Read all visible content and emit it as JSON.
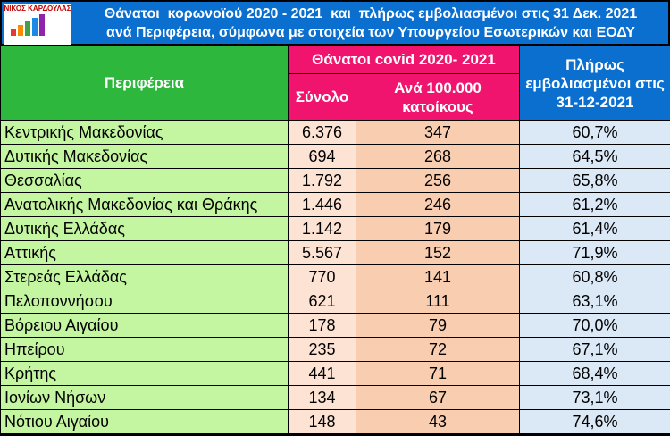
{
  "header": {
    "logo": "ΝΙΚΟΣ ΚΑΡΔΟΥΛΑΣ",
    "title_line1": "Θάνατοι  κορωνοϊού 2020 - 2021  και  πλήρως εμβολιασμένοι στις 31 Δεκ. 2021",
    "title_line2": "ανά Περιφέρεια, σύμφωνα με στοιχεία των Υπουργείου Εσωτερικών και ΕΟΔΥ"
  },
  "table": {
    "columns": {
      "region": "Περιφέρεια",
      "deaths_group": "Θάνατοι covid 2020- 2021",
      "total": "Σύνολο",
      "per100k": "Ανά 100.000 κατοίκους",
      "vaccinated": "Πλήρως εμβολιασμένοι στις 31-12-2021"
    },
    "rows": [
      [
        "Κεντρικής Μακεδονίας",
        "6.376",
        "347",
        "60,7%"
      ],
      [
        "Δυτικής Μακεδονίας",
        "694",
        "268",
        "64,5%"
      ],
      [
        "Θεσσαλίας",
        "1.792",
        "256",
        "65,8%"
      ],
      [
        "Ανατολικής Μακεδονίας και Θράκης",
        "1.446",
        "246",
        "61,2%"
      ],
      [
        "Δυτικής Ελλάδας",
        "1.142",
        "179",
        "61,4%"
      ],
      [
        "Αττικής",
        "5.567",
        "152",
        "71,9%"
      ],
      [
        "Στερεάς Ελλάδας",
        "770",
        "141",
        "60,8%"
      ],
      [
        "Πελοποννήσου",
        "621",
        "111",
        "63,1%"
      ],
      [
        "Βόρειου Αιγαίου",
        "178",
        "79",
        "70,0%"
      ],
      [
        "Ηπείρου",
        "235",
        "72",
        "67,1%"
      ],
      [
        "Κρήτης",
        "441",
        "71",
        "68,4%"
      ],
      [
        "Ιονίων Νήσων",
        "134",
        "67",
        "73,1%"
      ],
      [
        "Νότιου Αιγαίου",
        "148",
        "43",
        "74,6%"
      ]
    ]
  }
}
